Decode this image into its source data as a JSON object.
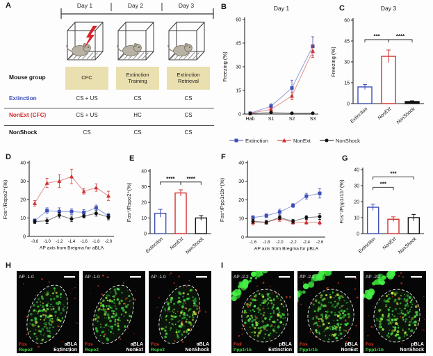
{
  "panel_a": {
    "label": "A",
    "days": [
      "Day 1",
      "Day 2",
      "Day 3"
    ],
    "mouse_group_header": "Mouse group",
    "phases": [
      "CFC",
      "Extinction Training",
      "Extinction Retrieval"
    ],
    "highlight_color": "#eadfae",
    "rows": [
      {
        "group": "Extinction",
        "color": "#3b4eb8",
        "cells": [
          "CS + US",
          "CS",
          "CS"
        ]
      },
      {
        "group": "NonExt (CFC)",
        "color": "#d22f2f",
        "cells": [
          "CS + US",
          "HC",
          "CS"
        ]
      },
      {
        "group": "NonShock",
        "color": "#111111",
        "cells": [
          "CS",
          "CS",
          "CS"
        ]
      }
    ]
  },
  "legend": {
    "items": [
      {
        "label": "Extinction",
        "color": "#3b4eb8",
        "marker": "square"
      },
      {
        "label": "NonExt",
        "color": "#d22f2f",
        "marker": "triangle"
      },
      {
        "label": "NonShock",
        "color": "#111111",
        "marker": "circle"
      }
    ]
  },
  "chart_data": [
    {
      "panel": "B",
      "type": "line",
      "title": "Day 1",
      "ylabel": "Freezing (%)",
      "categories": [
        "Hab",
        "S1",
        "S2",
        "S3"
      ],
      "ylim": [
        0,
        60
      ],
      "yticks": [
        0,
        15,
        30,
        45,
        60
      ],
      "series": [
        {
          "name": "Extinction",
          "color": "#3b4eb8",
          "marker": "square",
          "values": [
            0.5,
            5,
            16.5,
            43
          ],
          "errors": [
            0.4,
            1.5,
            5,
            6
          ]
        },
        {
          "name": "NonExt",
          "color": "#d22f2f",
          "marker": "triangle",
          "values": [
            0.5,
            3,
            11.5,
            40
          ],
          "errors": [
            0.4,
            1,
            2.5,
            4
          ]
        },
        {
          "name": "NonShock",
          "color": "#111111",
          "marker": "circle",
          "values": [
            0.3,
            1,
            0.5,
            0.5
          ],
          "errors": [
            0.2,
            0.5,
            0.3,
            0.3
          ]
        }
      ]
    },
    {
      "panel": "C",
      "type": "bar",
      "title": "Day 3",
      "ylabel": "Freezing (%)",
      "categories": [
        "Extinction",
        "NonExt",
        "NonShock"
      ],
      "ylim": [
        0,
        60
      ],
      "yticks": [
        0,
        15,
        30,
        45,
        60
      ],
      "values": [
        12,
        34,
        1.5
      ],
      "errors": [
        1.8,
        4.5,
        0.5
      ],
      "bar_colors": [
        "#3b4eb8",
        "#d22f2f",
        "#111111"
      ],
      "bar_fills": [
        "#ffffff",
        "#ffffff",
        "#111111"
      ],
      "significance": [
        {
          "from": 0,
          "to": 1,
          "label": "***",
          "y": 46
        },
        {
          "from": 1,
          "to": 2,
          "label": "****",
          "y": 46
        }
      ]
    },
    {
      "panel": "D",
      "type": "line",
      "ylabel": "Fos⁺/Rspo2⁺(%)",
      "xlabel": "AP axis from Bregma for aBLA",
      "categories": [
        "-0.8",
        "-1.0",
        "-1.2",
        "-1.4",
        "-1.6",
        "-1.8",
        "-2.0"
      ],
      "ylim": [
        0,
        40
      ],
      "yticks": [
        0,
        10,
        20,
        30,
        40
      ],
      "series": [
        {
          "name": "Extinction",
          "color": "#3b4eb8",
          "marker": "square",
          "values": [
            8.5,
            14,
            13.5,
            13.5,
            13,
            15.5,
            11
          ],
          "errors": [
            1,
            1.5,
            2,
            1.5,
            1.5,
            1.5,
            1.5
          ]
        },
        {
          "name": "NonExt",
          "color": "#d22f2f",
          "marker": "triangle",
          "values": [
            18,
            29,
            30,
            32.5,
            24.5,
            26.5,
            22
          ],
          "errors": [
            1.5,
            2.5,
            3.5,
            4,
            1.5,
            2,
            2.5
          ]
        },
        {
          "name": "NonShock",
          "color": "#111111",
          "marker": "circle",
          "values": [
            8,
            8.5,
            11.5,
            9.5,
            11,
            12.5,
            10.5
          ],
          "errors": [
            1,
            1.5,
            1.5,
            1.5,
            1,
            1.5,
            1.5
          ]
        }
      ]
    },
    {
      "panel": "E",
      "type": "bar",
      "ylabel": "Fos⁺/Rspo2⁺(%)",
      "categories": [
        "Extinction",
        "NonExt",
        "NonShock"
      ],
      "ylim": [
        0,
        40
      ],
      "yticks": [
        0,
        10,
        20,
        30,
        40
      ],
      "values": [
        13,
        26,
        10
      ],
      "errors": [
        2.5,
        2,
        1.5
      ],
      "bar_colors": [
        "#3b4eb8",
        "#d22f2f",
        "#111111"
      ],
      "bar_fills": [
        "#ffffff",
        "#ffffff",
        "#ffffff"
      ],
      "significance": [
        {
          "from": 0,
          "to": 1,
          "label": "****",
          "y": 33
        },
        {
          "from": 1,
          "to": 2,
          "label": "****",
          "y": 33
        }
      ]
    },
    {
      "panel": "F",
      "type": "line",
      "ylabel": "Fos⁺/Ppp1r1b⁺(%)",
      "xlabel": "AP axis from Bregma for pBLA",
      "categories": [
        "-1.6",
        "-1.8",
        "-2.0",
        "-2.2",
        "-2.4",
        "-2.6"
      ],
      "ylim": [
        0,
        40
      ],
      "yticks": [
        0,
        10,
        20,
        30,
        40
      ],
      "series": [
        {
          "name": "Extinction",
          "color": "#3b4eb8",
          "marker": "square",
          "values": [
            10.5,
            11.5,
            13.5,
            17,
            22,
            23.5
          ],
          "errors": [
            1,
            1,
            1.5,
            1,
            1.5,
            2.5
          ]
        },
        {
          "name": "NonExt",
          "color": "#d22f2f",
          "marker": "triangle",
          "values": [
            8,
            8,
            10,
            8,
            8,
            8
          ],
          "errors": [
            1.5,
            1,
            1.5,
            1,
            1,
            1.5
          ]
        },
        {
          "name": "NonShock",
          "color": "#111111",
          "marker": "circle",
          "values": [
            8.5,
            8,
            10.5,
            8.5,
            10.5,
            11
          ],
          "errors": [
            1,
            1,
            1,
            1,
            1,
            1.5
          ]
        }
      ]
    },
    {
      "panel": "G",
      "type": "bar",
      "ylabel": "Fos⁺/Ppp1r1b⁺(%)",
      "categories": [
        "Extinction",
        "NonExt",
        "NonShock"
      ],
      "ylim": [
        0,
        40
      ],
      "yticks": [
        0,
        10,
        20,
        30,
        40
      ],
      "values": [
        16.5,
        9,
        10
      ],
      "errors": [
        2,
        1.5,
        2
      ],
      "bar_colors": [
        "#3b4eb8",
        "#d22f2f",
        "#111111"
      ],
      "bar_fills": [
        "#ffffff",
        "#ffffff",
        "#ffffff"
      ],
      "significance": [
        {
          "from": 0,
          "to": 1,
          "label": "***",
          "y": 29
        },
        {
          "from": 0,
          "to": 2,
          "label": "***",
          "y": 35.5
        }
      ]
    }
  ],
  "micro_colors": {
    "red": "#e03525",
    "green": "#3fdf3f"
  },
  "panel_h": {
    "label": "H",
    "images": [
      {
        "ap": "AP -1.0",
        "marker_red": "Fos",
        "marker_green": "Rspo2",
        "region": "aBLA",
        "group": "Extinction"
      },
      {
        "ap": "AP -1.0",
        "marker_red": "Fos",
        "marker_green": "Rspo2",
        "region": "aBLA",
        "group": "NonExt"
      },
      {
        "ap": "AP -1.0",
        "marker_red": "Fos",
        "marker_green": "Rspo2",
        "region": "aBLA",
        "group": "NonShock"
      }
    ]
  },
  "panel_i": {
    "label": "I",
    "images": [
      {
        "ap": "AP -2.2",
        "marker_red": "Fos",
        "marker_green": "Ppp1r1b",
        "region": "pBLA",
        "group": "Extinction"
      },
      {
        "ap": "AP -2.2",
        "marker_red": "Fos",
        "marker_green": "Ppp1r1b",
        "region": "pBLA",
        "group": "NonExt"
      },
      {
        "ap": "AP -2.2",
        "marker_red": "Fos",
        "marker_green": "Ppp1r1b",
        "region": "pBLA",
        "group": "NonShock"
      }
    ]
  }
}
